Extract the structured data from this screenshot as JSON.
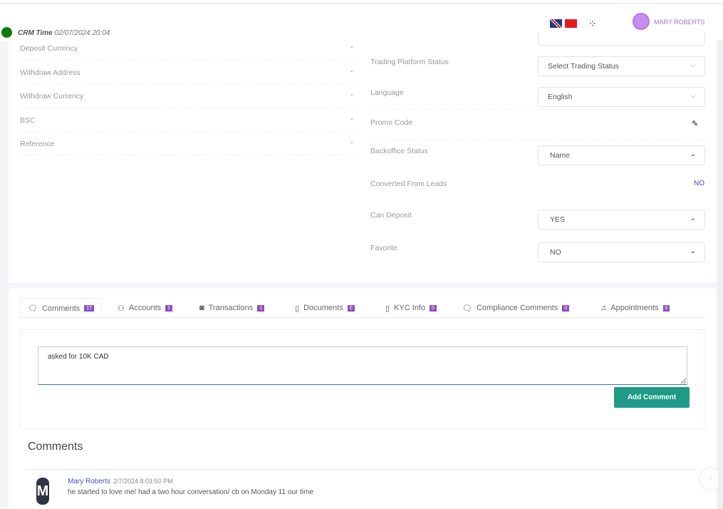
{
  "header": {
    "crm_label": "CRM Time",
    "crm_time": "02/07/2024 20:04",
    "user_name": "MARY ROBERTS",
    "flags": [
      "uk-flag",
      "china-flag"
    ]
  },
  "left_fields": [
    {
      "label": "Deposit Currency",
      "value": "-"
    },
    {
      "label": "Withdraw Address",
      "value": "-"
    },
    {
      "label": "Withdraw Currency",
      "value": "-"
    },
    {
      "label": "BSC",
      "value": "-"
    },
    {
      "label": "Reference",
      "value": "-"
    }
  ],
  "right_fields": {
    "trading_status": {
      "label": "Trading Platform Status",
      "value": "Select Trading Status"
    },
    "language": {
      "label": "Language",
      "value": "English"
    },
    "promo": {
      "label": "Promo Code"
    },
    "backoffice": {
      "label": "Backoffice Status",
      "value": "Name"
    },
    "converted": {
      "label": "Converted From Leads",
      "value": "NO"
    },
    "can_deposit": {
      "label": "Can Deposit",
      "value": "YES"
    },
    "favorite": {
      "label": "Favorite",
      "value": "NO"
    }
  },
  "tabs": [
    {
      "label": "Comments",
      "count": "17",
      "icon": "comment-icon"
    },
    {
      "label": "Accounts",
      "count": "1",
      "icon": "user-icon"
    },
    {
      "label": "Transactions",
      "count": "1",
      "icon": "camera-icon"
    },
    {
      "label": "Documents",
      "count": "0",
      "icon": "document-icon"
    },
    {
      "label": "KYC Info",
      "count": "0",
      "icon": "document-icon"
    },
    {
      "label": "Compliance Comments",
      "count": "0",
      "icon": "comment-icon"
    },
    {
      "label": "Appointments",
      "count": "0",
      "icon": "bell-icon"
    }
  ],
  "comment_form": {
    "value": "asked for 10K CAD",
    "button": "Add Comment"
  },
  "comments": {
    "title": "Comments",
    "items": [
      {
        "initial": "M",
        "author": "Mary Roberts",
        "date": "2/7/2024 8:03:50 PM",
        "text": "he started to love me/ had a two hour conversation/ cb on Monday 11 our time"
      }
    ]
  },
  "colors": {
    "accent": "#8e4fc2",
    "button": "#1f9a86",
    "status": "#0a7a0a"
  }
}
